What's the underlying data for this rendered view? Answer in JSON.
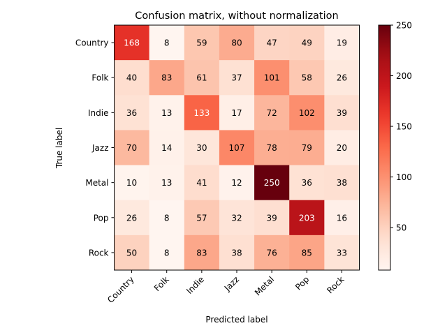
{
  "chart_data": {
    "type": "heatmap",
    "title": "Confusion matrix, without normalization",
    "xlabel": "Predicted label",
    "ylabel": "True label",
    "x_categories": [
      "Country",
      "Folk",
      "Indie",
      "Jazz",
      "Metal",
      "Pop",
      "Rock"
    ],
    "y_categories": [
      "Country",
      "Folk",
      "Indie",
      "Jazz",
      "Metal",
      "Pop",
      "Rock"
    ],
    "values": [
      [
        168,
        8,
        59,
        80,
        47,
        49,
        19
      ],
      [
        40,
        83,
        61,
        37,
        101,
        58,
        26
      ],
      [
        36,
        13,
        133,
        17,
        72,
        102,
        39
      ],
      [
        70,
        14,
        30,
        107,
        78,
        79,
        20
      ],
      [
        10,
        13,
        41,
        12,
        250,
        36,
        38
      ],
      [
        26,
        8,
        57,
        32,
        39,
        203,
        16
      ],
      [
        50,
        8,
        83,
        38,
        76,
        85,
        33
      ]
    ],
    "colormap": "Reds",
    "color_range": [
      8,
      250
    ],
    "colorbar_ticks": [
      50,
      100,
      150,
      200,
      250
    ],
    "grid": false,
    "legend": "colorbar-right"
  }
}
